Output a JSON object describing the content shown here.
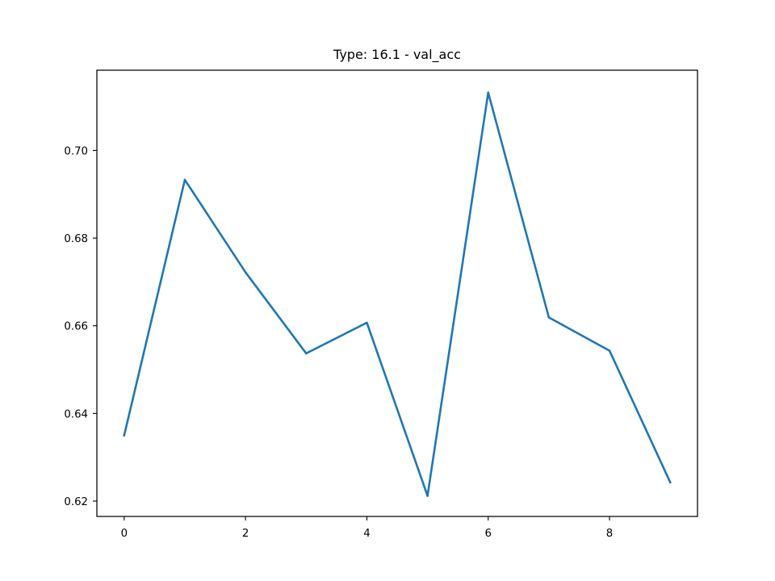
{
  "chart_data": {
    "type": "line",
    "title": "Type: 16.1 - val_acc",
    "xlabel": "",
    "ylabel": "",
    "xlim": [
      -0.45,
      9.45
    ],
    "ylim": [
      0.6165,
      0.7183
    ],
    "x_ticks": [
      0,
      2,
      4,
      6,
      8
    ],
    "x_tick_labels": [
      "0",
      "2",
      "4",
      "6",
      "8"
    ],
    "y_ticks": [
      0.62,
      0.64,
      0.66,
      0.68,
      0.7
    ],
    "y_tick_labels": [
      "0.62",
      "0.64",
      "0.66",
      "0.68",
      "0.70"
    ],
    "grid": false,
    "series": [
      {
        "color": "#1f77b4",
        "x": [
          0,
          1,
          2,
          3,
          4,
          5,
          6,
          7,
          8,
          9
        ],
        "values": [
          0.635,
          0.6933,
          0.6722,
          0.6537,
          0.6607,
          0.6212,
          0.7132,
          0.6619,
          0.6543,
          0.6243
        ]
      }
    ]
  }
}
